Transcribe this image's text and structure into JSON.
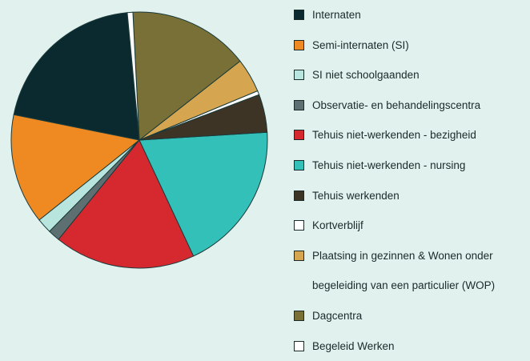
{
  "chart_data": {
    "type": "pie",
    "series": [
      {
        "name": "Internaten",
        "color": "#0b2a30",
        "values": [
          20.3
        ]
      },
      {
        "name": "Semi-internaten (SI)",
        "color": "#ef8a22",
        "values": [
          13.9
        ]
      },
      {
        "name": "SI niet schoolgaanden",
        "color": "#b8e6df",
        "values": [
          1.9
        ]
      },
      {
        "name": "Observatie- en behandelingscentra",
        "color": "#5d6f70",
        "values": [
          1.5
        ]
      },
      {
        "name": "Tehuis niet-werkenden - bezigheid",
        "color": "#d6282f",
        "values": [
          17.8
        ]
      },
      {
        "name": "Tehuis niet-werkenden - nursing",
        "color": "#33c0b8",
        "values": [
          19.0
        ]
      },
      {
        "name": "Tehuis werkenden",
        "color": "#3d3426",
        "values": [
          4.8
        ]
      },
      {
        "name": "Kortverblijf",
        "color": "#ffffff",
        "values": [
          0.5
        ]
      },
      {
        "name": "Plaatsing in gezinnen & Wonen onder begeleiding van een particulier (WOP)",
        "color": "#d6a550",
        "values": [
          4.3
        ]
      },
      {
        "name": "Dagcentra",
        "color": "#787036",
        "values": [
          15.2
        ]
      },
      {
        "name": "Begeleid Werken",
        "color": "#ffffff",
        "values": [
          0.7
        ]
      }
    ]
  }
}
